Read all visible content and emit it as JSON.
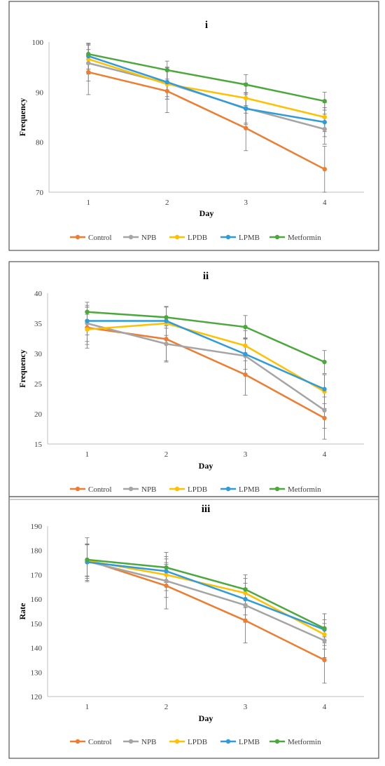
{
  "colors": {
    "Control": "#ED7D31",
    "NPB": "#A5A5A5",
    "LPDB": "#FFC000",
    "LPMB": "#2F9BD9",
    "Metformin": "#4CA83C",
    "errorbar": "#7f7f7f",
    "axis": "#bfbfbf",
    "frame": "#555555"
  },
  "chart_data": [
    {
      "type": "line",
      "title": "i",
      "xlabel": "Day",
      "ylabel": "Frequency",
      "categories": [
        "1",
        "2",
        "3",
        "4"
      ],
      "ylim": [
        70,
        100
      ],
      "yticks": [
        70,
        80,
        90,
        100
      ],
      "grid": false,
      "legend_position": "bottom",
      "series": [
        {
          "name": "Control",
          "values": [
            94.0,
            90.2,
            82.8,
            74.6
          ],
          "err": [
            4.5,
            4.3,
            4.5,
            4.6
          ]
        },
        {
          "name": "NPB",
          "values": [
            95.8,
            91.8,
            86.8,
            82.6
          ],
          "err": [
            3.6,
            3.2,
            3.0,
            3.0
          ]
        },
        {
          "name": "LPDB",
          "values": [
            96.6,
            91.6,
            88.8,
            85.0
          ],
          "err": [
            3.0,
            3.0,
            3.0,
            2.9
          ]
        },
        {
          "name": "LPMB",
          "values": [
            97.2,
            92.0,
            86.7,
            84.0
          ],
          "err": [
            2.6,
            2.9,
            3.2,
            2.9
          ]
        },
        {
          "name": "Metformin",
          "values": [
            97.6,
            94.4,
            91.5,
            88.2
          ],
          "err": [
            2.0,
            1.8,
            2.0,
            1.8
          ]
        }
      ]
    },
    {
      "type": "line",
      "title": "ii",
      "xlabel": "Day",
      "ylabel": "Frequency",
      "categories": [
        "1",
        "2",
        "3",
        "4"
      ],
      "ylim": [
        15,
        40
      ],
      "yticks": [
        15,
        20,
        25,
        30,
        35,
        40
      ],
      "grid": false,
      "legend_position": "bottom",
      "series": [
        {
          "name": "Control",
          "values": [
            34.3,
            32.4,
            26.5,
            19.3
          ],
          "err": [
            3.4,
            3.6,
            3.4,
            3.5
          ]
        },
        {
          "name": "NPB",
          "values": [
            35.0,
            31.6,
            29.6,
            20.6
          ],
          "err": [
            3.0,
            3.0,
            3.0,
            3.0
          ]
        },
        {
          "name": "LPDB",
          "values": [
            34.0,
            35.0,
            31.3,
            23.7
          ],
          "err": [
            2.5,
            2.7,
            2.5,
            2.8
          ]
        },
        {
          "name": "LPMB",
          "values": [
            35.4,
            35.4,
            29.9,
            24.1
          ],
          "err": [
            2.3,
            2.4,
            2.5,
            2.4
          ]
        },
        {
          "name": "Metformin",
          "values": [
            36.9,
            36.0,
            34.4,
            28.6
          ],
          "err": [
            1.6,
            1.8,
            1.9,
            1.9
          ]
        }
      ]
    },
    {
      "type": "line",
      "title": "iii",
      "xlabel": "Day",
      "ylabel": "Rate",
      "categories": [
        "1",
        "2",
        "3",
        "4"
      ],
      "ylim": [
        120,
        190
      ],
      "yticks": [
        120,
        130,
        140,
        150,
        160,
        170,
        180,
        190
      ],
      "grid": false,
      "legend_position": "bottom",
      "series": [
        {
          "name": "Control",
          "values": [
            176.0,
            165.5,
            151.2,
            135.0
          ],
          "err": [
            6.5,
            9.5,
            9.2,
            9.5
          ]
        },
        {
          "name": "NPB",
          "values": [
            175.5,
            167.5,
            157.5,
            143.0
          ],
          "err": [
            7.0,
            6.8,
            7.0,
            7.0
          ]
        },
        {
          "name": "LPDB",
          "values": [
            175.8,
            170.0,
            162.5,
            145.5
          ],
          "err": [
            6.5,
            6.5,
            6.0,
            6.0
          ]
        },
        {
          "name": "LPMB",
          "values": [
            175.2,
            171.5,
            160.0,
            147.5
          ],
          "err": [
            7.5,
            6.0,
            6.5,
            6.5
          ]
        },
        {
          "name": "Metformin",
          "values": [
            176.2,
            173.0,
            164.0,
            148.0
          ],
          "err": [
            9.0,
            6.2,
            6.0,
            6.0
          ]
        }
      ]
    }
  ]
}
